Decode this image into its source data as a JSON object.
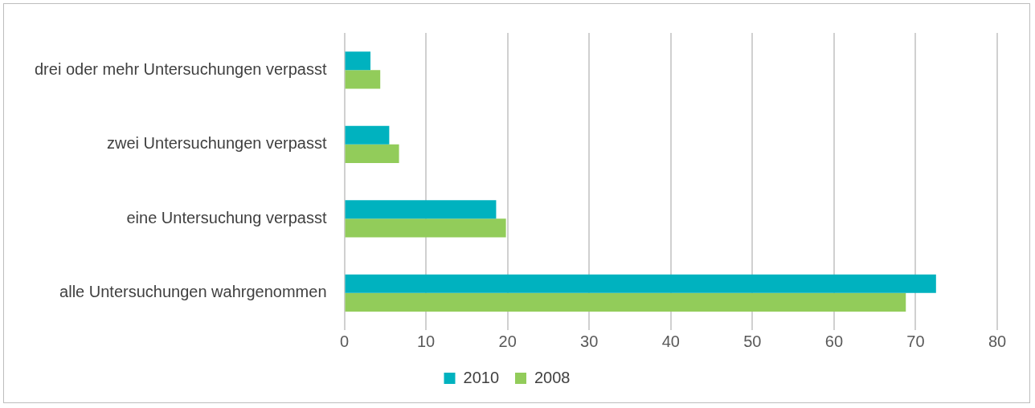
{
  "chart_data": {
    "type": "bar",
    "orientation": "horizontal",
    "categories": [
      "drei oder mehr Untersuchungen verpasst",
      "zwei Untersuchungen verpasst",
      "eine Untersuchung verpasst",
      "alle Untersuchungen wahrgenommen"
    ],
    "series": [
      {
        "name": "2010",
        "color": "#00b2bf",
        "values": [
          3.2,
          5.5,
          18.6,
          72.5
        ]
      },
      {
        "name": "2008",
        "color": "#92cc5a",
        "values": [
          4.4,
          6.7,
          19.8,
          68.8
        ]
      }
    ],
    "xlim": [
      0,
      80
    ],
    "xticks": [
      0,
      10,
      20,
      30,
      40,
      50,
      60,
      70,
      80
    ],
    "grid": "x",
    "legend": "bottom"
  }
}
